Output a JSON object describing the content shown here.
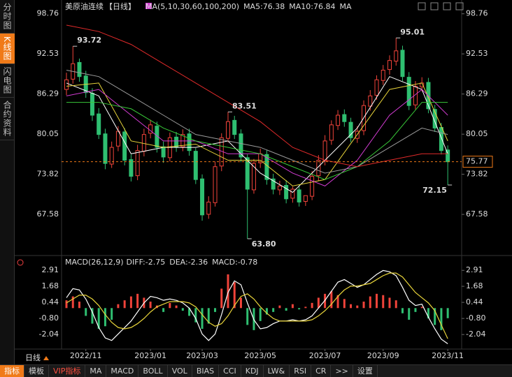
{
  "sidebar": [
    "分时图",
    "K线图",
    "闪电图",
    "合约资料"
  ],
  "toolbar": [
    "指标",
    "模板",
    "VIP指标",
    "MA",
    "MACD",
    "BOLL",
    "VOL",
    "BIAS",
    "CCI",
    "KDJ",
    "LW&",
    "RSI",
    "CR",
    ">>",
    "设置"
  ],
  "chart_data": {
    "type": "candlestick",
    "title": "美原油连续",
    "period": "【日线】",
    "period_label": "日线",
    "ma_header": "MA(5,10,30,60,100,200)",
    "ma_readouts": [
      {
        "text": "MA5:76.38",
        "color": "#ffffff"
      },
      {
        "text": "MA10:76.84",
        "color": "#e8d43a"
      },
      {
        "text": "MA",
        "color": "#d23cd2"
      }
    ],
    "ylim": [
      61.3,
      99.6
    ],
    "yticks": [
      98.76,
      92.53,
      86.29,
      80.05,
      73.82,
      67.58
    ],
    "up_color": "#f0433a",
    "down_color": "#2fbf71",
    "open": [
      87.0,
      88.6,
      91.2,
      89.1,
      86.4,
      83.2,
      80.1,
      75.4,
      78.2,
      80.4,
      76.1,
      73.6,
      77.4,
      80.2,
      81.3,
      78.1,
      76.4,
      79.6,
      78.1,
      80.1,
      77.4,
      73.1,
      67.6,
      69.4,
      75.1,
      79.4,
      82.2,
      80.1,
      76.4,
      71.4,
      75.6,
      76.9,
      73.1,
      71.4,
      72.1,
      70.1,
      71.4,
      69.6,
      70.4,
      73.6,
      75.9,
      79.1,
      81.4,
      83.1,
      81.9,
      79.4,
      80.6,
      84.4,
      86.1,
      88.4,
      90.1,
      91.4,
      93.1,
      88.9,
      84.6,
      87.4,
      88.1,
      83.9,
      81.1,
      77.6
    ],
    "high": [
      89.6,
      93.72,
      91.8,
      89.9,
      87.2,
      84.1,
      80.9,
      78.9,
      81.3,
      81.0,
      76.9,
      78.4,
      80.9,
      82.3,
      82.0,
      78.9,
      80.3,
      80.4,
      80.8,
      80.9,
      77.9,
      73.8,
      70.4,
      75.8,
      80.2,
      83.51,
      82.9,
      80.8,
      76.9,
      76.2,
      77.8,
      77.6,
      73.9,
      72.8,
      72.9,
      71.9,
      72.1,
      70.4,
      74.3,
      76.8,
      79.9,
      82.2,
      83.8,
      83.9,
      82.6,
      81.3,
      85.3,
      86.9,
      89.2,
      90.8,
      92.3,
      95.01,
      93.8,
      89.7,
      88.3,
      88.9,
      88.8,
      84.6,
      81.8,
      78.3
    ],
    "low": [
      86.1,
      87.9,
      88.2,
      85.7,
      82.1,
      79.3,
      74.6,
      74.8,
      77.4,
      75.2,
      72.7,
      72.9,
      76.6,
      79.4,
      77.2,
      75.6,
      75.8,
      77.3,
      77.4,
      76.7,
      72.3,
      66.6,
      66.9,
      68.8,
      74.3,
      78.8,
      79.3,
      75.7,
      63.8,
      70.8,
      74.8,
      72.2,
      70.7,
      70.6,
      69.3,
      69.4,
      68.8,
      68.9,
      69.8,
      72.8,
      75.2,
      78.4,
      80.7,
      81.2,
      78.8,
      78.7,
      79.9,
      83.7,
      85.4,
      87.7,
      89.3,
      90.7,
      88.3,
      83.8,
      83.9,
      86.7,
      83.3,
      80.4,
      76.9,
      72.15
    ],
    "close": [
      88.5,
      91.0,
      89.0,
      86.5,
      83.0,
      80.0,
      75.5,
      78.0,
      80.5,
      76.0,
      73.5,
      77.5,
      80.0,
      81.5,
      78.0,
      76.5,
      79.5,
      78.0,
      80.0,
      77.5,
      73.0,
      67.5,
      69.5,
      75.0,
      79.5,
      82.0,
      80.0,
      76.5,
      71.5,
      75.5,
      77.0,
      73.0,
      71.5,
      72.0,
      70.0,
      71.5,
      69.5,
      70.5,
      73.5,
      76.0,
      79.0,
      81.5,
      83.0,
      82.0,
      79.5,
      80.5,
      84.5,
      86.0,
      88.5,
      90.0,
      91.5,
      93.0,
      89.0,
      84.5,
      87.5,
      88.0,
      84.0,
      81.0,
      77.5,
      75.77
    ],
    "dates": [
      {
        "value": 3,
        "label": "2022/11"
      },
      {
        "value": 13,
        "label": "2023/01"
      },
      {
        "value": 21,
        "label": "2023/03"
      },
      {
        "value": 30,
        "label": "2023/05"
      },
      {
        "value": 40,
        "label": "2023/07"
      },
      {
        "value": 49,
        "label": "2023/09"
      },
      {
        "value": 59,
        "label": "2023/11"
      }
    ],
    "last_price": 75.77,
    "annotations": [
      {
        "value": 93.72,
        "index": 1,
        "color": "#ff4d4d"
      },
      {
        "value": 83.51,
        "index": 25,
        "color": "#ff4d4d"
      },
      {
        "value": {
          "value": 63.8,
          "label": "63.80"
        },
        "index": 28,
        "color": "#3fd08a"
      },
      {
        "value": 95.01,
        "index": 51,
        "color": "#ff4d4d"
      },
      {
        "value": 72.15,
        "index": 59,
        "color": "#3fd08a"
      }
    ],
    "ma_x": [
      0,
      5,
      10,
      15,
      20,
      25,
      30,
      35,
      40,
      45,
      50,
      55,
      59
    ],
    "ma_lines": [
      {
        "color": "#ffffff",
        "values": [
          88,
          86,
          77,
          78,
          78,
          79,
          74,
          71,
          76,
          81,
          89,
          87,
          77
        ]
      },
      {
        "color": "#e8d43a",
        "values": [
          87.5,
          88,
          79,
          78,
          78.5,
          76,
          76,
          72,
          73,
          80,
          87,
          88,
          79
        ]
      },
      {
        "color": "#d23cd2",
        "values": [
          86,
          87,
          83,
          79,
          79,
          77,
          77,
          74,
          72,
          76,
          83,
          87,
          83
        ]
      },
      {
        "color": "#38c838",
        "values": [
          85,
          85,
          84,
          81,
          79,
          78,
          77,
          75,
          73,
          75,
          79,
          85,
          85
        ]
      },
      {
        "color": "#9a9a9a",
        "values": [
          90,
          89,
          86,
          83,
          80,
          79,
          78,
          76,
          74,
          75,
          78,
          81,
          80
        ]
      },
      {
        "color": "#e02a2a",
        "values": [
          97,
          96,
          94,
          91,
          88,
          85,
          82,
          78,
          76,
          75,
          76,
          77,
          77
        ]
      }
    ],
    "macd": {
      "header": "MACD(26,12,9)",
      "readouts": [
        {
          "text": "DIFF:-2.75",
          "color": "#ffffff"
        },
        {
          "text": "DEA:-2.36",
          "color": "#e8d43a"
        },
        {
          "text": "MACD:-0.78",
          "color": "#d23cd2"
        }
      ],
      "ylim": [
        -3.0,
        3.3
      ],
      "yticks": [
        2.91,
        1.68,
        0.44,
        {
          "value": -0.8,
          "label": "-0.80"
        },
        -2.04
      ],
      "diff_color": "#ffffff",
      "dea_color": "#e8d43a",
      "histogram": [
        0.6,
        0.9,
        0.5,
        -0.6,
        -1.2,
        -1.6,
        -1.4,
        -0.9,
        0.3,
        0.6,
        0.9,
        1.1,
        0.8,
        0.5,
        0.2,
        -0.3,
        0.4,
        0.2,
        -0.2,
        -0.6,
        -1.1,
        -1.6,
        -1.2,
        -0.3,
        1.5,
        2.6,
        2.0,
        0.8,
        -1.3,
        -1.7,
        -1.0,
        -0.5,
        -0.3,
        0.2,
        -0.2,
        0.3,
        -0.1,
        0.1,
        0.4,
        0.8,
        1.1,
        1.3,
        1.0,
        0.7,
        0.3,
        0.2,
        0.5,
        0.9,
        1.1,
        1.0,
        0.8,
        0.6,
        -0.4,
        -0.9,
        -0.3,
        0.1,
        -0.8,
        -1.3,
        -1.7,
        -0.78
      ],
      "diff": [
        0.8,
        1.5,
        1.4,
        0.7,
        -0.3,
        -1.5,
        -2.3,
        -2.5,
        -2.0,
        -1.5,
        -1.0,
        -0.3,
        0.4,
        0.9,
        0.8,
        0.6,
        0.7,
        0.6,
        0.4,
        0,
        -0.8,
        -2.0,
        -2.5,
        -2.0,
        -0.5,
        1.2,
        2.1,
        1.8,
        0.4,
        -0.9,
        -1.6,
        -1.5,
        -1.2,
        -1.0,
        -1.0,
        -0.9,
        -1.0,
        -0.9,
        -0.6,
        0,
        0.6,
        1.3,
        2.0,
        2.2,
        1.9,
        1.6,
        1.8,
        2.2,
        2.6,
        2.9,
        2.8,
        2.5,
        1.6,
        0.6,
        0.2,
        0.3,
        -0.7,
        -1.6,
        -2.4,
        -2.75
      ],
      "dea": [
        0.4,
        0.7,
        1.0,
        1.0,
        0.7,
        0.2,
        -0.5,
        -1.1,
        -1.5,
        -1.6,
        -1.5,
        -1.2,
        -0.8,
        -0.3,
        0.1,
        0.3,
        0.5,
        0.5,
        0.5,
        0.4,
        0.1,
        -0.5,
        -1.1,
        -1.4,
        -1.2,
        -0.6,
        0.2,
        0.9,
        1.1,
        0.7,
        0.1,
        -0.4,
        -0.8,
        -1.0,
        -1.0,
        -1.0,
        -1.0,
        -1.0,
        -0.9,
        -0.6,
        -0.2,
        0.3,
        0.9,
        1.4,
        1.7,
        1.7,
        1.8,
        1.9,
        2.2,
        2.5,
        2.7,
        2.7,
        2.4,
        1.8,
        1.2,
        0.8,
        0.4,
        -0.2,
        -1.3,
        -2.36
      ]
    }
  }
}
